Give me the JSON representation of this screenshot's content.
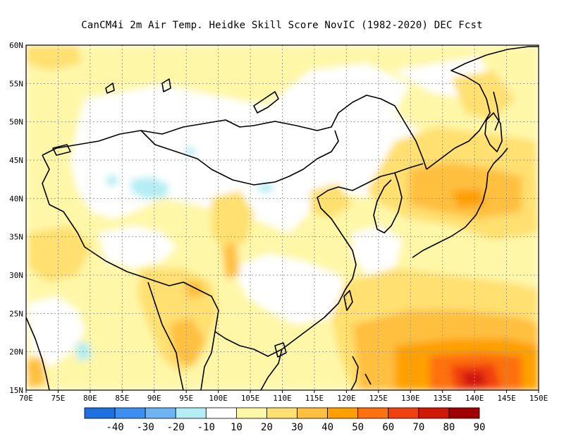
{
  "title": "CanCM4i  2m Air Temp. Heidke Skill Score NovIC (1982-2020) DEC Fcst",
  "map": {
    "lon_range": [
      70,
      150
    ],
    "lat_range": [
      15,
      60
    ],
    "lon_ticks": [
      "70E",
      "75E",
      "80E",
      "85E",
      "90E",
      "95E",
      "100E",
      "105E",
      "110E",
      "115E",
      "120E",
      "125E",
      "130E",
      "135E",
      "140E",
      "145E",
      "150E"
    ],
    "lat_ticks": [
      "15N",
      "20N",
      "25N",
      "30N",
      "35N",
      "40N",
      "45N",
      "50N",
      "55N",
      "60N"
    ],
    "grid": true
  },
  "colorbar": {
    "labels": [
      "-40",
      "-30",
      "-20",
      "-10",
      "10",
      "20",
      "30",
      "40",
      "50",
      "60",
      "70",
      "80",
      "90"
    ],
    "colors": [
      "#1e6fe0",
      "#3c8ff0",
      "#6eb4f4",
      "#b4eef4",
      "#ffffff",
      "#fff7a8",
      "#ffe070",
      "#ffc040",
      "#ffa000",
      "#ff7010",
      "#f04010",
      "#d01808",
      "#a00000"
    ]
  }
}
